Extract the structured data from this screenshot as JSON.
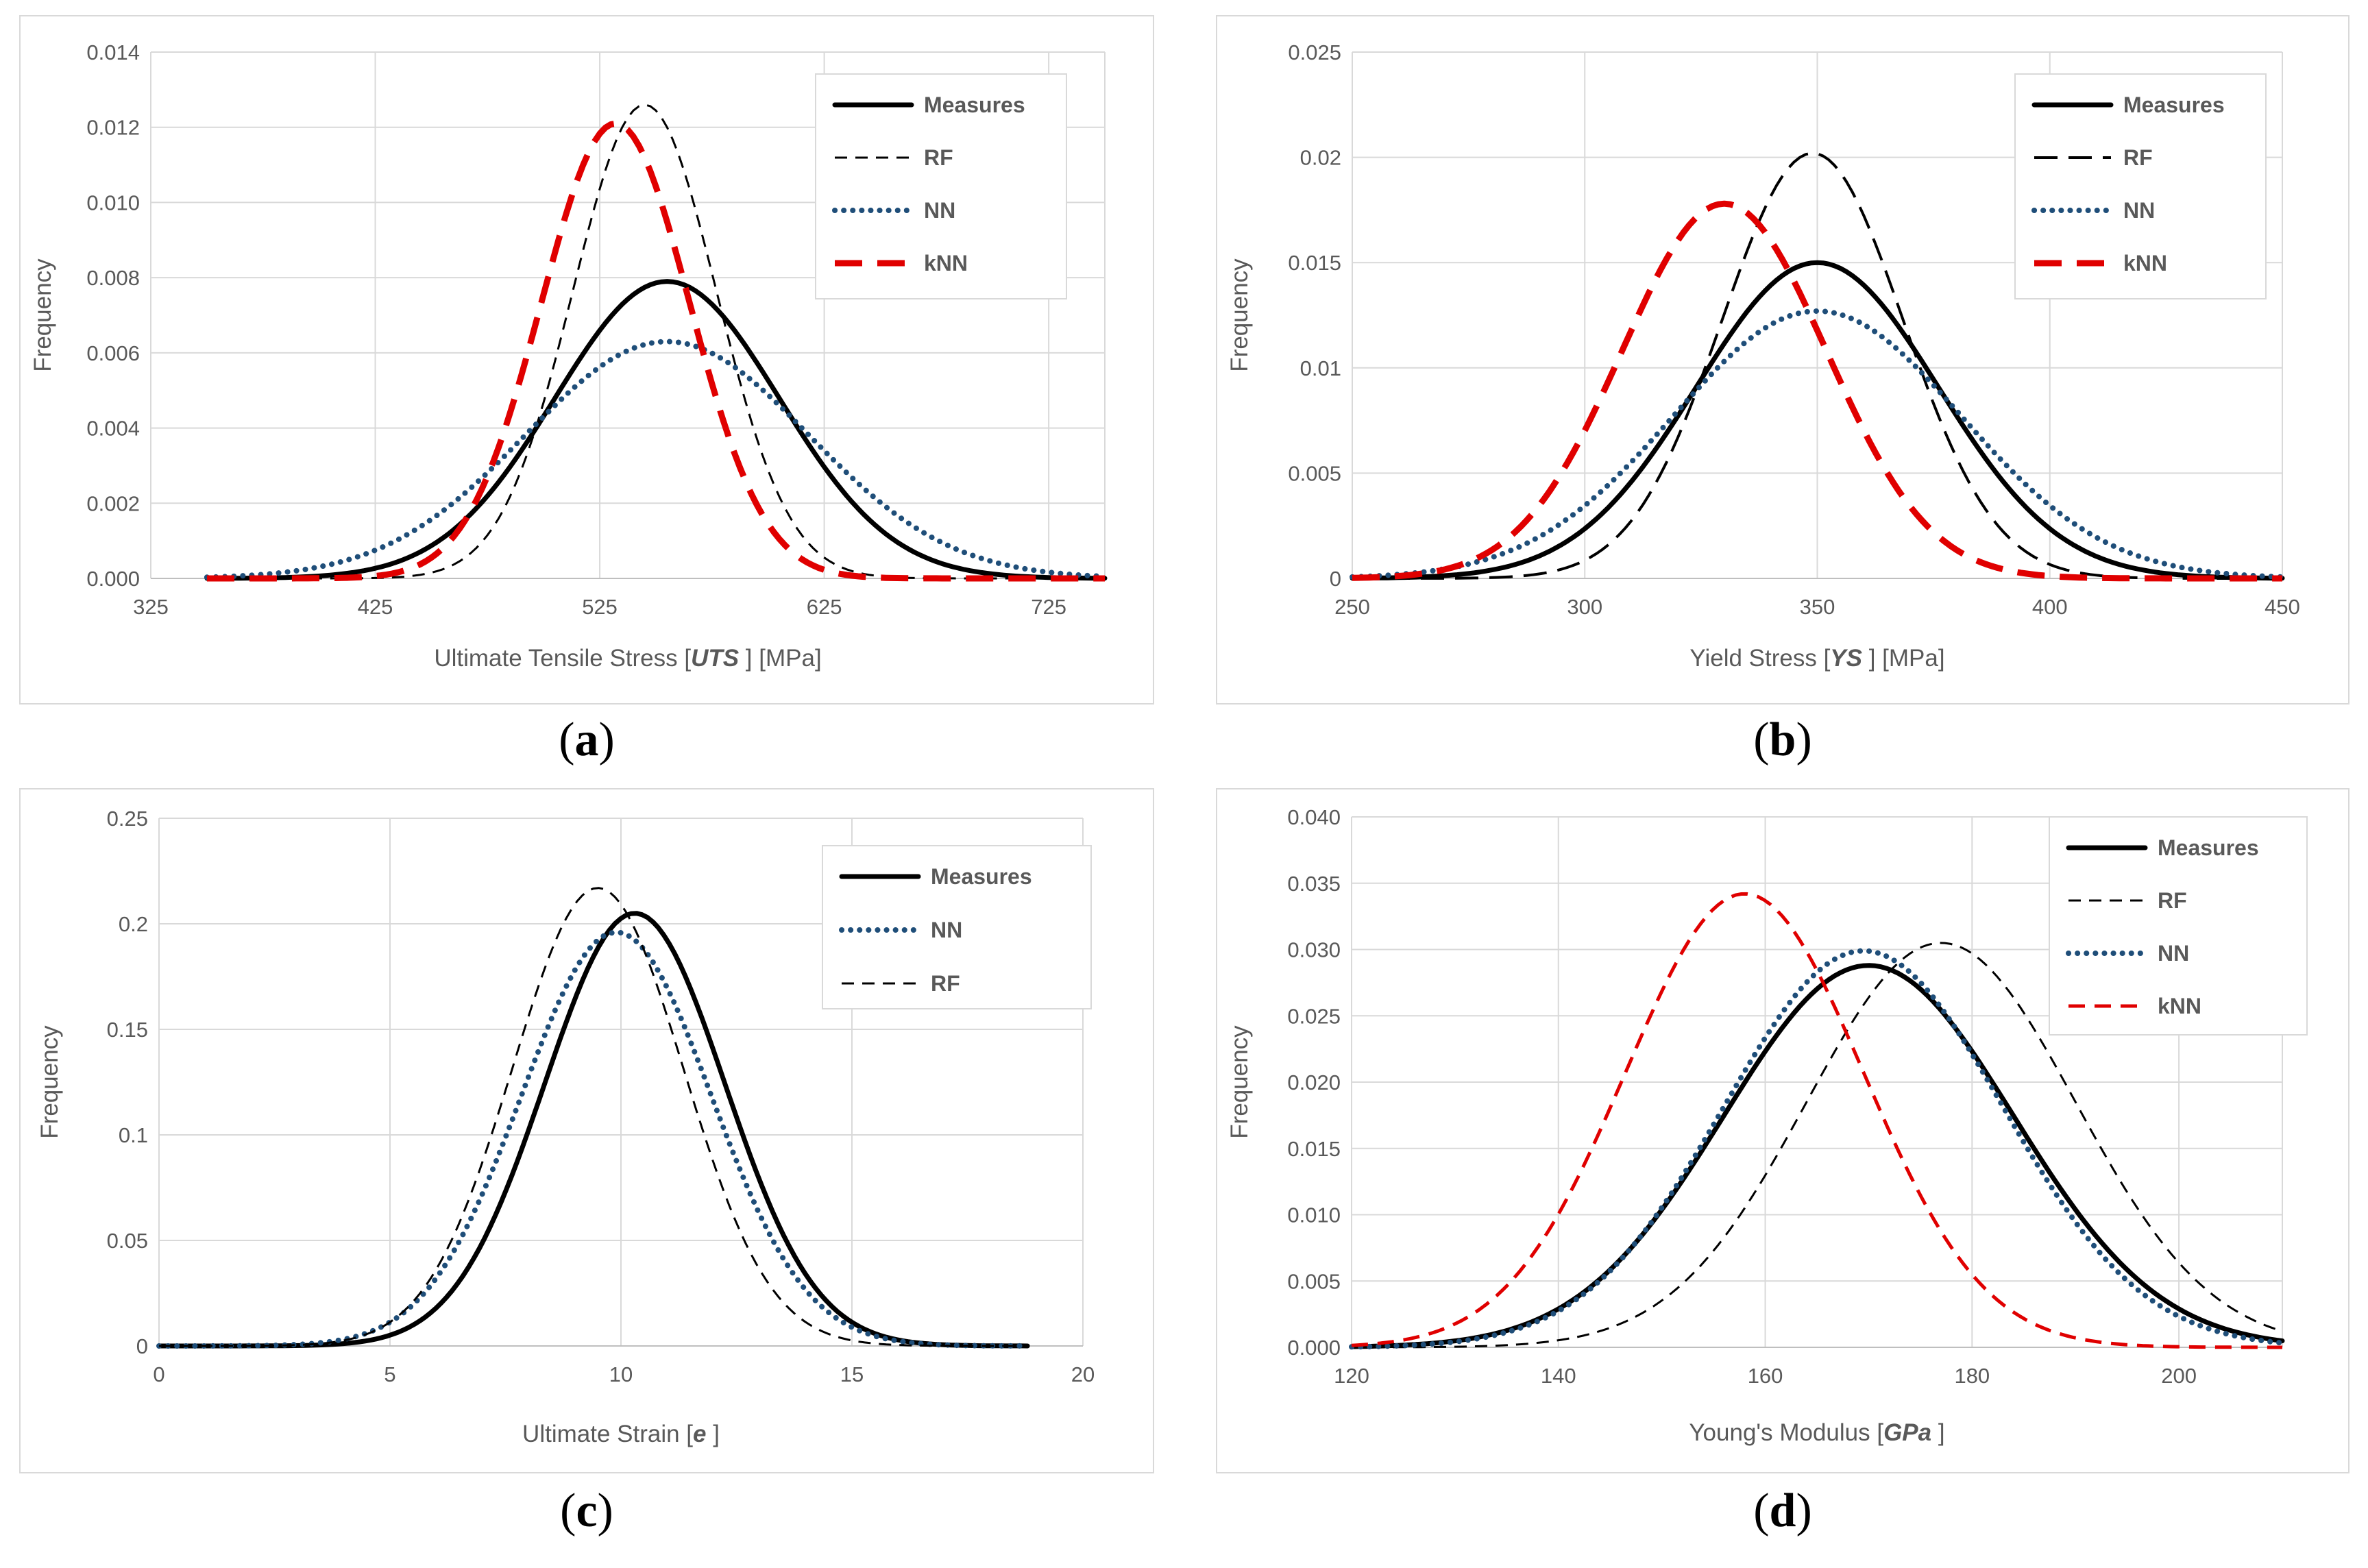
{
  "panels": [
    {
      "label": "a"
    },
    {
      "label": "b"
    },
    {
      "label": "c"
    },
    {
      "label": "d"
    }
  ],
  "chart_data": [
    {
      "id": "a",
      "type": "line",
      "title": "",
      "xlabel_parts": [
        "Ultimate Tensile Stress [",
        "UTS",
        " ] [MPa]"
      ],
      "ylabel": "Frequency",
      "xlim": [
        325,
        750
      ],
      "ylim": [
        0,
        0.014
      ],
      "xticks": [
        325,
        425,
        525,
        625,
        725
      ],
      "xtick_labels": [
        "325",
        "425",
        "525",
        "625",
        "725"
      ],
      "yticks": [
        0,
        0.002,
        0.004,
        0.006,
        0.008,
        0.01,
        0.012,
        0.014
      ],
      "ytick_labels": [
        "0.000",
        "0.002",
        "0.004",
        "0.006",
        "0.008",
        "0.010",
        "0.012",
        "0.014"
      ],
      "series": [
        {
          "name": "Measures",
          "kind": "gauss",
          "mean": 555,
          "sd": 50,
          "peak": 0.0079,
          "x_range": [
            350,
            750
          ],
          "color": "#000000",
          "style": "solid"
        },
        {
          "name": "RF",
          "kind": "gauss",
          "mean": 545,
          "sd": 32,
          "peak": 0.0126,
          "x_range": [
            350,
            750
          ],
          "color": "#000000",
          "style": "dash-thin"
        },
        {
          "name": "NN",
          "kind": "gauss",
          "mean": 555,
          "sd": 63,
          "peak": 0.0063,
          "x_range": [
            350,
            750
          ],
          "color": "#1f4e79",
          "style": "dotted"
        },
        {
          "name": "kNN",
          "kind": "gauss",
          "mean": 532,
          "sd": 33,
          "peak": 0.0121,
          "x_range": [
            350,
            750
          ],
          "color": "#e00000",
          "style": "dash-thick"
        }
      ]
    },
    {
      "id": "b",
      "type": "line",
      "title": "",
      "xlabel_parts": [
        "Yield Stress [",
        "YS",
        " ] [MPa]"
      ],
      "ylabel": "Frequency",
      "xlim": [
        250,
        450
      ],
      "ylim": [
        0,
        0.025
      ],
      "xticks": [
        250,
        300,
        350,
        400,
        450
      ],
      "xtick_labels": [
        "250",
        "300",
        "350",
        "400",
        "450"
      ],
      "yticks": [
        0,
        0.005,
        0.01,
        0.015,
        0.02,
        0.025
      ],
      "ytick_labels": [
        "0",
        "0.005",
        "0.01",
        "0.015",
        "0.02",
        "0.025"
      ],
      "series": [
        {
          "name": "Measures",
          "kind": "gauss",
          "mean": 350,
          "sd": 26,
          "peak": 0.015,
          "x_range": [
            250,
            450
          ],
          "color": "#000000",
          "style": "solid"
        },
        {
          "name": "RF",
          "kind": "gauss",
          "mean": 349,
          "sd": 19.5,
          "peak": 0.0202,
          "x_range": [
            250,
            450
          ],
          "color": "#000000",
          "style": "dash-long"
        },
        {
          "name": "NN",
          "kind": "gauss",
          "mean": 350,
          "sd": 31,
          "peak": 0.0127,
          "x_range": [
            250,
            450
          ],
          "color": "#1f4e79",
          "style": "dotted"
        },
        {
          "name": "kNN",
          "kind": "gauss",
          "mean": 330,
          "sd": 22,
          "peak": 0.0178,
          "x_range": [
            250,
            450
          ],
          "color": "#e00000",
          "style": "dash-thick"
        }
      ]
    },
    {
      "id": "c",
      "type": "line",
      "title": "",
      "xlabel_parts": [
        "Ultimate Strain [",
        "e",
        " ]"
      ],
      "ylabel": "Frequency",
      "xlim": [
        0,
        20
      ],
      "ylim": [
        0,
        0.25
      ],
      "xticks": [
        0,
        5,
        10,
        15,
        20
      ],
      "xtick_labels": [
        "0",
        "5",
        "10",
        "15",
        "20"
      ],
      "yticks": [
        0,
        0.05,
        0.1,
        0.15,
        0.2,
        0.25
      ],
      "ytick_labels": [
        "0",
        "0.05",
        "0.1",
        "0.15",
        "0.2",
        "0.25"
      ],
      "series": [
        {
          "name": "Measures",
          "kind": "gauss",
          "mean": 10.3,
          "sd": 1.95,
          "peak": 0.205,
          "x_range": [
            0,
            18.8
          ],
          "color": "#000000",
          "style": "solid"
        },
        {
          "name": "NN",
          "kind": "gauss",
          "mean": 9.9,
          "sd": 2.05,
          "peak": 0.196,
          "x_range": [
            0,
            18.8
          ],
          "color": "#1f4e79",
          "style": "dotted"
        },
        {
          "name": "RF",
          "kind": "gauss",
          "mean": 9.5,
          "sd": 1.85,
          "peak": 0.217,
          "x_range": [
            0,
            18.8
          ],
          "color": "#000000",
          "style": "dash-thin"
        }
      ]
    },
    {
      "id": "d",
      "type": "line",
      "title": "",
      "xlabel_parts": [
        "Young's Modulus [",
        "GPa",
        " ]"
      ],
      "ylabel": "Frequency",
      "xlim": [
        120,
        210
      ],
      "ylim": [
        0,
        0.04
      ],
      "xticks": [
        120,
        140,
        160,
        180,
        200
      ],
      "xtick_labels": [
        "120",
        "140",
        "160",
        "180",
        "200"
      ],
      "yticks": [
        0,
        0.005,
        0.01,
        0.015,
        0.02,
        0.025,
        0.03,
        0.035,
        0.04
      ],
      "ytick_labels": [
        "0.000",
        "0.005",
        "0.010",
        "0.015",
        "0.020",
        "0.025",
        "0.030",
        "0.035",
        "0.040"
      ],
      "series": [
        {
          "name": "Measures",
          "kind": "gauss",
          "mean": 170,
          "sd": 14,
          "peak": 0.0288,
          "x_range": [
            120,
            210
          ],
          "color": "#000000",
          "style": "solid"
        },
        {
          "name": "RF",
          "kind": "gauss",
          "mean": 177,
          "sd": 13,
          "peak": 0.0305,
          "x_range": [
            120,
            210
          ],
          "color": "#000000",
          "style": "dash-thin"
        },
        {
          "name": "NN",
          "kind": "gauss",
          "mean": 169.5,
          "sd": 13.5,
          "peak": 0.0299,
          "x_range": [
            120,
            210
          ],
          "color": "#1f4e79",
          "style": "dotted"
        },
        {
          "name": "kNN",
          "kind": "gauss",
          "mean": 158,
          "sd": 11.5,
          "peak": 0.0342,
          "x_range": [
            120,
            210
          ],
          "color": "#e00000",
          "style": "dash-red"
        }
      ]
    }
  ]
}
